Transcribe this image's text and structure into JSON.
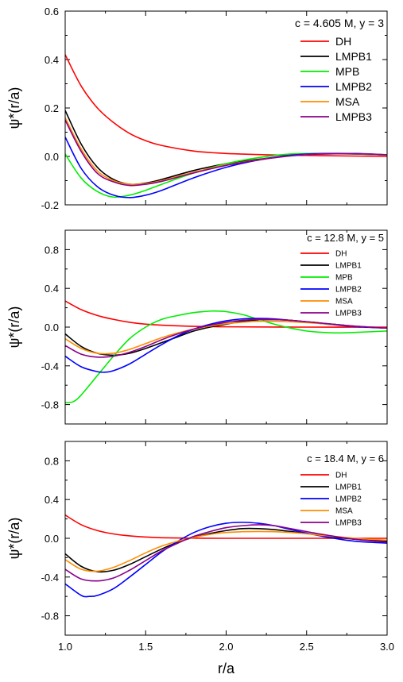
{
  "chart_data": [
    {
      "type": "line",
      "annotation": "c = 4.605 M, y = 3",
      "ylabel": "ψ*(r/a)",
      "xlim": [
        1.0,
        3.0
      ],
      "ylim": [
        -0.2,
        0.6
      ],
      "yticks": [
        "-0.2",
        "0.0",
        "0.2",
        "0.4",
        "0.6"
      ],
      "legend_position": "top-right",
      "series": [
        {
          "name": "DH",
          "color": "#ff0000",
          "x": [
            1.0,
            1.1,
            1.2,
            1.3,
            1.4,
            1.5,
            1.6,
            1.8,
            2.0,
            2.3,
            2.6,
            3.0
          ],
          "y": [
            0.42,
            0.29,
            0.2,
            0.14,
            0.095,
            0.065,
            0.045,
            0.022,
            0.012,
            0.006,
            0.003,
            0.0
          ]
        },
        {
          "name": "LMPB1",
          "color": "#000000",
          "x": [
            1.0,
            1.1,
            1.2,
            1.3,
            1.4,
            1.5,
            1.6,
            1.8,
            2.0,
            2.2,
            2.4,
            2.6,
            2.8,
            3.0
          ],
          "y": [
            0.19,
            0.05,
            -0.045,
            -0.095,
            -0.115,
            -0.11,
            -0.095,
            -0.058,
            -0.03,
            -0.012,
            0.003,
            0.01,
            0.01,
            0.006
          ]
        },
        {
          "name": "MPB",
          "color": "#00ee00",
          "x": [
            1.0,
            1.1,
            1.2,
            1.3,
            1.4,
            1.5,
            1.6,
            1.8,
            2.0,
            2.2,
            2.4,
            2.6,
            2.8,
            3.0
          ],
          "y": [
            0.01,
            -0.09,
            -0.145,
            -0.168,
            -0.16,
            -0.14,
            -0.115,
            -0.068,
            -0.03,
            -0.005,
            0.01,
            0.012,
            0.01,
            0.006
          ]
        },
        {
          "name": "LMPB2",
          "color": "#0000ff",
          "x": [
            1.0,
            1.1,
            1.2,
            1.3,
            1.4,
            1.5,
            1.6,
            1.8,
            2.0,
            2.2,
            2.4,
            2.6,
            2.8,
            3.0
          ],
          "y": [
            0.08,
            -0.05,
            -0.125,
            -0.16,
            -0.17,
            -0.16,
            -0.14,
            -0.088,
            -0.045,
            -0.015,
            0.005,
            0.012,
            0.012,
            0.007
          ]
        },
        {
          "name": "MSA",
          "color": "#ff8c00",
          "x": [
            1.0,
            1.1,
            1.2,
            1.3,
            1.4,
            1.5,
            1.6,
            1.8,
            2.0,
            2.2,
            2.4,
            2.6,
            2.8,
            3.0
          ],
          "y": [
            0.16,
            0.03,
            -0.06,
            -0.1,
            -0.115,
            -0.112,
            -0.1,
            -0.065,
            -0.035,
            -0.014,
            0.002,
            0.01,
            0.011,
            0.007
          ]
        },
        {
          "name": "LMPB3",
          "color": "#8b008b",
          "x": [
            1.0,
            1.1,
            1.2,
            1.3,
            1.4,
            1.5,
            1.6,
            1.8,
            2.0,
            2.2,
            2.4,
            2.6,
            2.8,
            3.0
          ],
          "y": [
            0.15,
            0.02,
            -0.07,
            -0.105,
            -0.12,
            -0.115,
            -0.103,
            -0.068,
            -0.037,
            -0.015,
            0.002,
            0.01,
            0.011,
            0.007
          ]
        }
      ]
    },
    {
      "type": "line",
      "annotation": "c = 12.8 M, y = 5",
      "ylabel": "ψ*(r/a)",
      "xlim": [
        1.0,
        3.0
      ],
      "ylim": [
        -1.0,
        1.0
      ],
      "yticks": [
        "-0.8",
        "-0.4",
        "0.0",
        "0.4",
        "0.8"
      ],
      "legend_position": "top-right",
      "series": [
        {
          "name": "DH",
          "color": "#ff0000",
          "x": [
            1.0,
            1.1,
            1.2,
            1.3,
            1.4,
            1.5,
            1.6,
            1.8,
            2.0,
            2.5,
            3.0
          ],
          "y": [
            0.27,
            0.18,
            0.12,
            0.08,
            0.05,
            0.03,
            0.02,
            0.008,
            0.003,
            0.0,
            0.0
          ]
        },
        {
          "name": "LMPB1",
          "color": "#000000",
          "x": [
            1.0,
            1.1,
            1.2,
            1.3,
            1.4,
            1.5,
            1.6,
            1.7,
            1.8,
            1.9,
            2.0,
            2.1,
            2.2,
            2.3,
            2.4,
            2.6,
            2.8,
            3.0
          ],
          "y": [
            -0.07,
            -0.2,
            -0.27,
            -0.29,
            -0.27,
            -0.22,
            -0.16,
            -0.1,
            -0.04,
            0.0,
            0.03,
            0.06,
            0.075,
            0.078,
            0.07,
            0.04,
            0.01,
            -0.01
          ]
        },
        {
          "name": "MPB",
          "color": "#00ee00",
          "x": [
            1.0,
            1.05,
            1.1,
            1.2,
            1.3,
            1.4,
            1.5,
            1.6,
            1.7,
            1.8,
            1.9,
            1.95,
            2.0,
            2.1,
            2.2,
            2.3,
            2.4,
            2.5,
            2.6,
            2.7,
            2.8,
            3.0
          ],
          "y": [
            -0.78,
            -0.77,
            -0.7,
            -0.5,
            -0.3,
            -0.12,
            0.0,
            0.08,
            0.12,
            0.15,
            0.165,
            0.165,
            0.16,
            0.13,
            0.08,
            0.03,
            -0.01,
            -0.04,
            -0.055,
            -0.06,
            -0.055,
            -0.04
          ]
        },
        {
          "name": "LMPB2",
          "color": "#0000ff",
          "x": [
            1.0,
            1.1,
            1.2,
            1.25,
            1.3,
            1.4,
            1.5,
            1.6,
            1.7,
            1.8,
            1.9,
            2.0,
            2.1,
            2.2,
            2.3,
            2.4,
            2.6,
            2.8,
            3.0
          ],
          "y": [
            -0.3,
            -0.41,
            -0.46,
            -0.465,
            -0.45,
            -0.38,
            -0.28,
            -0.18,
            -0.09,
            -0.02,
            0.03,
            0.065,
            0.085,
            0.09,
            0.085,
            0.07,
            0.035,
            0.005,
            -0.01
          ]
        },
        {
          "name": "MSA",
          "color": "#ff8c00",
          "x": [
            1.0,
            1.1,
            1.2,
            1.3,
            1.4,
            1.5,
            1.6,
            1.7,
            1.8,
            1.9,
            2.0,
            2.2,
            2.4,
            2.6,
            2.8,
            3.0
          ],
          "y": [
            -0.12,
            -0.22,
            -0.27,
            -0.27,
            -0.23,
            -0.17,
            -0.11,
            -0.06,
            -0.02,
            0.01,
            0.035,
            0.06,
            0.055,
            0.035,
            0.01,
            -0.01
          ]
        },
        {
          "name": "LMPB3",
          "color": "#8b008b",
          "x": [
            1.0,
            1.1,
            1.2,
            1.3,
            1.4,
            1.5,
            1.6,
            1.7,
            1.8,
            1.9,
            2.0,
            2.1,
            2.2,
            2.3,
            2.4,
            2.6,
            2.8,
            3.0
          ],
          "y": [
            -0.19,
            -0.28,
            -0.31,
            -0.3,
            -0.26,
            -0.2,
            -0.13,
            -0.07,
            -0.02,
            0.02,
            0.05,
            0.07,
            0.08,
            0.078,
            0.07,
            0.04,
            0.01,
            -0.01
          ]
        }
      ]
    },
    {
      "type": "line",
      "annotation": "c = 18.4 M, y = 6",
      "ylabel": "ψ*(r/a)",
      "xlabel": "r/a",
      "xlim": [
        1.0,
        3.0
      ],
      "xticks": [
        "1.0",
        "1.5",
        "2.0",
        "2.5",
        "3.0"
      ],
      "ylim": [
        -1.0,
        1.0
      ],
      "yticks": [
        "-0.8",
        "-0.4",
        "0.0",
        "0.4",
        "0.8"
      ],
      "legend_position": "top-right",
      "series": [
        {
          "name": "DH",
          "color": "#ff0000",
          "x": [
            1.0,
            1.1,
            1.2,
            1.3,
            1.4,
            1.5,
            1.6,
            1.8,
            2.0,
            2.5,
            3.0
          ],
          "y": [
            0.24,
            0.14,
            0.08,
            0.045,
            0.025,
            0.013,
            0.006,
            0.001,
            0.0,
            0.0,
            0.0
          ]
        },
        {
          "name": "LMPB1",
          "color": "#000000",
          "x": [
            1.0,
            1.1,
            1.2,
            1.3,
            1.4,
            1.5,
            1.6,
            1.7,
            1.8,
            1.9,
            2.0,
            2.1,
            2.2,
            2.3,
            2.4,
            2.6,
            2.8,
            3.0
          ],
          "y": [
            -0.16,
            -0.29,
            -0.345,
            -0.33,
            -0.27,
            -0.19,
            -0.11,
            -0.04,
            0.01,
            0.05,
            0.08,
            0.1,
            0.1,
            0.09,
            0.07,
            0.03,
            -0.01,
            -0.03
          ]
        },
        {
          "name": "LMPB2",
          "color": "#0000ff",
          "x": [
            1.0,
            1.1,
            1.15,
            1.2,
            1.3,
            1.4,
            1.5,
            1.6,
            1.7,
            1.8,
            1.9,
            2.0,
            2.1,
            2.2,
            2.3,
            2.4,
            2.6,
            2.8,
            3.0
          ],
          "y": [
            -0.47,
            -0.59,
            -0.6,
            -0.59,
            -0.52,
            -0.4,
            -0.27,
            -0.14,
            -0.03,
            0.06,
            0.12,
            0.155,
            0.165,
            0.155,
            0.13,
            0.09,
            0.02,
            -0.03,
            -0.05
          ]
        },
        {
          "name": "MSA",
          "color": "#ff8c00",
          "x": [
            1.0,
            1.1,
            1.2,
            1.3,
            1.4,
            1.5,
            1.6,
            1.7,
            1.8,
            1.9,
            2.0,
            2.2,
            2.4,
            2.6,
            2.8,
            3.0
          ],
          "y": [
            -0.22,
            -0.32,
            -0.34,
            -0.3,
            -0.23,
            -0.15,
            -0.08,
            -0.03,
            0.01,
            0.04,
            0.06,
            0.07,
            0.06,
            0.03,
            0.0,
            -0.02
          ]
        },
        {
          "name": "LMPB3",
          "color": "#8b008b",
          "x": [
            1.0,
            1.1,
            1.2,
            1.3,
            1.4,
            1.5,
            1.6,
            1.7,
            1.8,
            1.9,
            2.0,
            2.1,
            2.2,
            2.3,
            2.4,
            2.6,
            2.8,
            3.0
          ],
          "y": [
            -0.32,
            -0.42,
            -0.44,
            -0.41,
            -0.33,
            -0.23,
            -0.13,
            -0.05,
            0.02,
            0.07,
            0.11,
            0.13,
            0.14,
            0.13,
            0.1,
            0.04,
            -0.01,
            -0.04
          ]
        }
      ]
    }
  ]
}
